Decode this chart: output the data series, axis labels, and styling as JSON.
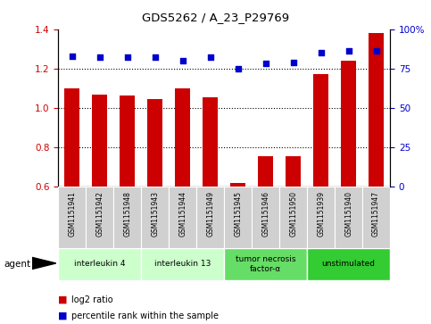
{
  "title": "GDS5262 / A_23_P29769",
  "samples": [
    "GSM1151941",
    "GSM1151942",
    "GSM1151948",
    "GSM1151943",
    "GSM1151944",
    "GSM1151949",
    "GSM1151945",
    "GSM1151946",
    "GSM1151950",
    "GSM1151939",
    "GSM1151940",
    "GSM1151947"
  ],
  "log2_ratio": [
    1.1,
    1.065,
    1.06,
    1.045,
    1.1,
    1.055,
    0.615,
    0.755,
    0.755,
    1.17,
    1.24,
    1.38
  ],
  "percentile_rank": [
    83,
    82,
    82,
    82,
    80,
    82,
    75,
    78,
    79,
    85,
    86,
    86
  ],
  "ylim_left": [
    0.6,
    1.4
  ],
  "ylim_right": [
    0,
    100
  ],
  "yticks_left": [
    0.6,
    0.8,
    1.0,
    1.2,
    1.4
  ],
  "yticks_right": [
    0,
    25,
    50,
    75,
    100
  ],
  "bar_color": "#cc0000",
  "scatter_color": "#0000cc",
  "groups": [
    {
      "label": "interleukin 4",
      "start": 0,
      "end": 3,
      "color": "#ccffcc"
    },
    {
      "label": "interleukin 13",
      "start": 3,
      "end": 6,
      "color": "#ccffcc"
    },
    {
      "label": "tumor necrosis\nfactor-α",
      "start": 6,
      "end": 9,
      "color": "#66dd66"
    },
    {
      "label": "unstimulated",
      "start": 9,
      "end": 12,
      "color": "#33cc33"
    }
  ],
  "legend_items": [
    {
      "color": "#cc0000",
      "label": "log2 ratio"
    },
    {
      "color": "#0000cc",
      "label": "percentile rank within the sample"
    }
  ],
  "agent_label": "agent",
  "background_color": "#ffffff",
  "plot_bg_color": "#ffffff",
  "tick_label_color_left": "#cc0000",
  "tick_label_color_right": "#0000cc",
  "sample_box_color": "#d0d0d0",
  "right_tick_labels": [
    "0",
    "25",
    "50",
    "75",
    "100%"
  ]
}
